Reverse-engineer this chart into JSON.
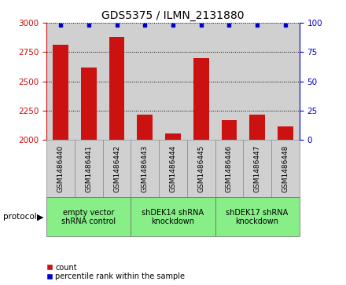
{
  "title": "GDS5375 / ILMN_2131880",
  "samples": [
    "GSM1486440",
    "GSM1486441",
    "GSM1486442",
    "GSM1486443",
    "GSM1486444",
    "GSM1486445",
    "GSM1486446",
    "GSM1486447",
    "GSM1486448"
  ],
  "counts": [
    2810,
    2620,
    2880,
    2215,
    2055,
    2700,
    2170,
    2215,
    2120
  ],
  "percentile_ranks": [
    98,
    98,
    98,
    98,
    98,
    98,
    98,
    98,
    98
  ],
  "ylim_left": [
    2000,
    3000
  ],
  "ylim_right": [
    0,
    100
  ],
  "yticks_left": [
    2000,
    2250,
    2500,
    2750,
    3000
  ],
  "yticks_right": [
    0,
    25,
    50,
    75,
    100
  ],
  "bar_color": "#cc1111",
  "dot_color": "#0000cc",
  "bar_width": 0.55,
  "groups": [
    {
      "label": "empty vector\nshRNA control",
      "start": 0,
      "end": 3,
      "color": "#88ee88"
    },
    {
      "label": "shDEK14 shRNA\nknockdown",
      "start": 3,
      "end": 6,
      "color": "#88ee88"
    },
    {
      "label": "shDEK17 shRNA\nknockdown",
      "start": 6,
      "end": 9,
      "color": "#88ee88"
    }
  ],
  "col_bg_color": "#d0d0d0",
  "protocol_label": "protocol",
  "legend_count_label": "count",
  "legend_percentile_label": "percentile rank within the sample"
}
